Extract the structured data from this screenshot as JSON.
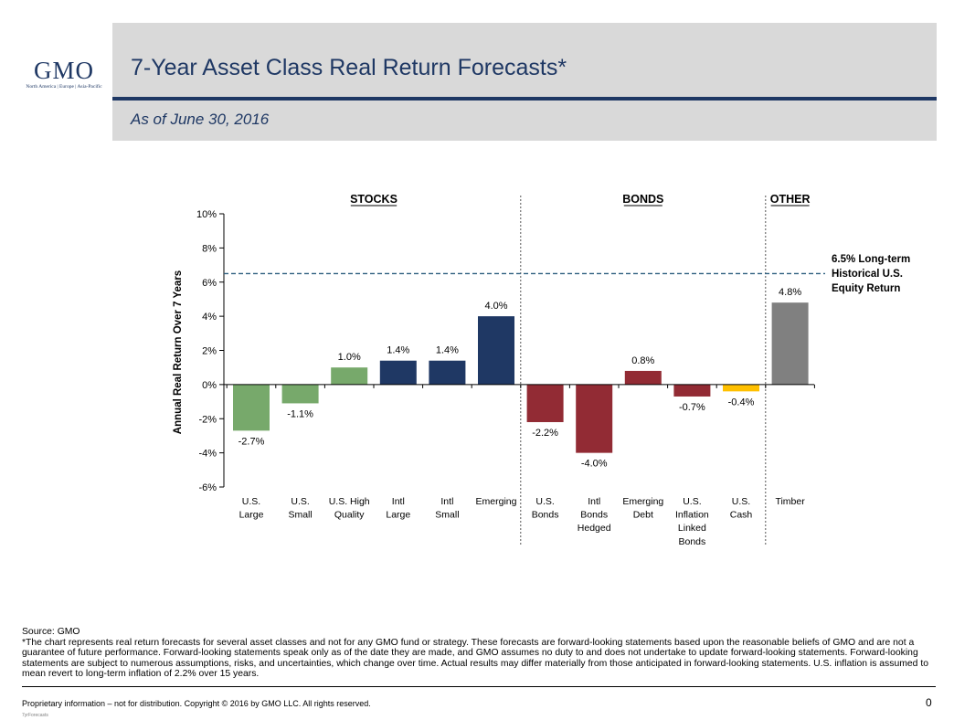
{
  "logo": {
    "wordmark": "GMO",
    "tagline": "North America | Europe | Asia-Pacific"
  },
  "header": {
    "title": "7-Year Asset Class Real Return Forecasts*",
    "subtitle": "As of June 30, 2016"
  },
  "chart_data": {
    "type": "bar",
    "ylabel": "Annual Real Return Over 7 Years",
    "ylim": [
      -6,
      10
    ],
    "yticks": [
      -6,
      -4,
      -2,
      0,
      2,
      4,
      6,
      8,
      10
    ],
    "ytick_labels": [
      "-6%",
      "-4%",
      "-2%",
      "0%",
      "2%",
      "4%",
      "6%",
      "8%",
      "10%"
    ],
    "groups": [
      {
        "label": "STOCKS",
        "start": 0,
        "end": 5
      },
      {
        "label": "BONDS",
        "start": 6,
        "end": 10
      },
      {
        "label": "OTHER",
        "start": 11,
        "end": 11
      }
    ],
    "categories": [
      [
        "U.S.",
        "Large"
      ],
      [
        "U.S.",
        "Small"
      ],
      [
        "U.S. High",
        "Quality"
      ],
      [
        "Intl",
        "Large"
      ],
      [
        "Intl",
        "Small"
      ],
      [
        "Emerging"
      ],
      [
        "U.S.",
        "Bonds"
      ],
      [
        "Intl",
        "Bonds",
        "Hedged"
      ],
      [
        "Emerging",
        "Debt"
      ],
      [
        "U.S.",
        "Inflation",
        "Linked",
        "Bonds"
      ],
      [
        "U.S.",
        "Cash"
      ],
      [
        "Timber"
      ]
    ],
    "values": [
      -2.7,
      -1.1,
      1.0,
      1.4,
      1.4,
      4.0,
      -2.2,
      -4.0,
      0.8,
      -0.7,
      -0.4,
      4.8
    ],
    "value_labels": [
      "-2.7%",
      "-1.1%",
      "1.0%",
      "1.4%",
      "1.4%",
      "4.0%",
      "-2.2%",
      "-4.0%",
      "0.8%",
      "-0.7%",
      "-0.4%",
      "4.8%"
    ],
    "colors": [
      "#77a96b",
      "#77a96b",
      "#77a96b",
      "#1f3864",
      "#1f3864",
      "#1f3864",
      "#922b34",
      "#922b34",
      "#922b34",
      "#922b34",
      "#ffc000",
      "#808080"
    ],
    "reference_line": {
      "value": 6.5,
      "label_lines": [
        "6.5% Long-term",
        "Historical U.S.",
        "Equity Return"
      ],
      "color": "#2e5f7f"
    },
    "grid": false
  },
  "notes": {
    "source": "Source: GMO",
    "disclaimer": "*The chart represents real return forecasts for several asset classes and not for any GMO fund or strategy.  These forecasts are forward-looking statements based upon the reasonable beliefs of GMO and are not a guarantee of future performance.  Forward-looking statements speak only as of the date they are made, and GMO assumes no duty to and does not undertake to update forward-looking statements.  Forward-looking statements are subject to numerous assumptions, risks, and uncertainties, which change over time.  Actual results may differ materially from those anticipated in forward-looking statements. U.S. inflation is assumed to mean revert to long-term inflation of 2.2% over 15 years."
  },
  "footer": {
    "text": "Proprietary information – not for distribution.  Copyright © 2016 by GMO LLC.  All rights reserved.",
    "ref": "7yrForecasts",
    "page_number": "0"
  }
}
